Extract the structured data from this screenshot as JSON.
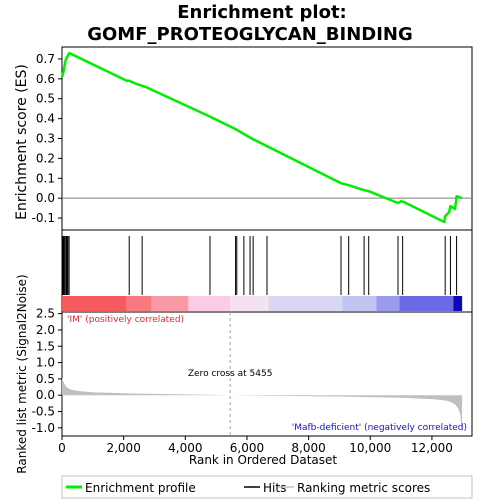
{
  "chart_data": {
    "type": "line",
    "title_line1": "Enrichment plot:",
    "title_line2": "GOMF_PROTEOGLYCAN_BINDING",
    "es_panel": {
      "ylabel": "Enrichment score (ES)",
      "ylim": [
        -0.16,
        0.76
      ],
      "yticks": [
        -0.1,
        0.0,
        0.1,
        0.2,
        0.3,
        0.4,
        0.5,
        0.6,
        0.7
      ],
      "ytick_labels": [
        "-0.1",
        "0.0",
        "0.1",
        "0.2",
        "0.3",
        "0.4",
        "0.5",
        "0.6",
        "0.7"
      ],
      "series": [
        {
          "name": "Enrichment profile",
          "color": "#00ee00",
          "x": [
            0,
            40,
            120,
            235,
            2100,
            2180,
            2400,
            2600,
            2700,
            4800,
            5650,
            6150,
            9050,
            9300,
            9800,
            9950,
            10900,
            11000,
            11100,
            12400,
            12430,
            12560,
            12600,
            12750,
            12800,
            12980
          ],
          "y": [
            0.61,
            0.63,
            0.695,
            0.73,
            0.59,
            0.59,
            0.575,
            0.565,
            0.56,
            0.41,
            0.345,
            0.3,
            0.075,
            0.065,
            0.04,
            0.035,
            -0.025,
            -0.015,
            -0.02,
            -0.12,
            -0.09,
            -0.07,
            -0.04,
            -0.055,
            0.01,
            0.0
          ]
        }
      ]
    },
    "hits": [
      10,
      20,
      30,
      45,
      60,
      90,
      130,
      160,
      190,
      230,
      2180,
      2600,
      4800,
      5630,
      5670,
      5900,
      6100,
      6200,
      6650,
      9050,
      9300,
      9800,
      9950,
      10900,
      11050,
      12430,
      12600,
      12800
    ],
    "rank_panel": {
      "ylabel": "Ranked list metric (Signal2Noise)",
      "xlabel": "Rank in Ordered Dataset",
      "ylim": [
        -1.25,
        2.55
      ],
      "yticks": [
        -1.0,
        -0.5,
        0.0,
        0.5,
        1.0,
        1.5,
        2.0,
        2.5
      ],
      "ytick_labels": [
        "-1.0",
        "-0.5",
        "0.0",
        "0.5",
        "1.0",
        "1.5",
        "2.0",
        "2.5"
      ],
      "xlim": [
        0,
        13300
      ],
      "xticks": [
        0,
        2000,
        4000,
        6000,
        8000,
        10000,
        12000
      ],
      "xtick_labels": [
        "0",
        "2,000",
        "4,000",
        "6,000",
        "8,000",
        "10,000",
        "12,000"
      ],
      "metric_x": [
        0,
        30,
        80,
        150,
        300,
        600,
        1000,
        2000,
        3000,
        4000,
        5000,
        5455,
        6000,
        7000,
        8000,
        9000,
        10000,
        11000,
        12000,
        12400,
        12600,
        12750,
        12850,
        12920,
        12980
      ],
      "metric_y": [
        0.55,
        0.45,
        0.35,
        0.25,
        0.17,
        0.12,
        0.09,
        0.06,
        0.04,
        0.025,
        0.01,
        0.0,
        -0.01,
        -0.02,
        -0.03,
        -0.04,
        -0.06,
        -0.08,
        -0.12,
        -0.16,
        -0.2,
        -0.28,
        -0.4,
        -0.6,
        -1.2
      ],
      "zero_cross_label": "Zero cross at 5455",
      "zero_cross_x": 5455,
      "pos_label": "'IM' (positively correlated)",
      "neg_label": "'Mafb-deficient' (negatively correlated)",
      "pos_color": "#e8272c",
      "neg_color": "#1010d0"
    },
    "color_bar": [
      {
        "from": 0,
        "to": 2100,
        "color": "#f65a5e"
      },
      {
        "from": 2100,
        "to": 2900,
        "color": "#f87a80"
      },
      {
        "from": 2900,
        "to": 4100,
        "color": "#fa9aa4"
      },
      {
        "from": 4100,
        "to": 5455,
        "color": "#fbcce4"
      },
      {
        "from": 5455,
        "to": 6700,
        "color": "#f4e2f0"
      },
      {
        "from": 6700,
        "to": 9100,
        "color": "#d8d8f6"
      },
      {
        "from": 9100,
        "to": 10200,
        "color": "#c4c4f2"
      },
      {
        "from": 10200,
        "to": 10950,
        "color": "#9c9cec"
      },
      {
        "from": 10950,
        "to": 12700,
        "color": "#6a6ae4"
      },
      {
        "from": 12700,
        "to": 12980,
        "color": "#0a0ab0"
      }
    ],
    "legend": {
      "items": [
        {
          "label": "Enrichment profile",
          "color": "#00ee00"
        },
        {
          "label": "Hits",
          "color": "#000000"
        },
        {
          "label": "Ranking metric scores",
          "color": "#c0c0c0"
        }
      ]
    }
  }
}
